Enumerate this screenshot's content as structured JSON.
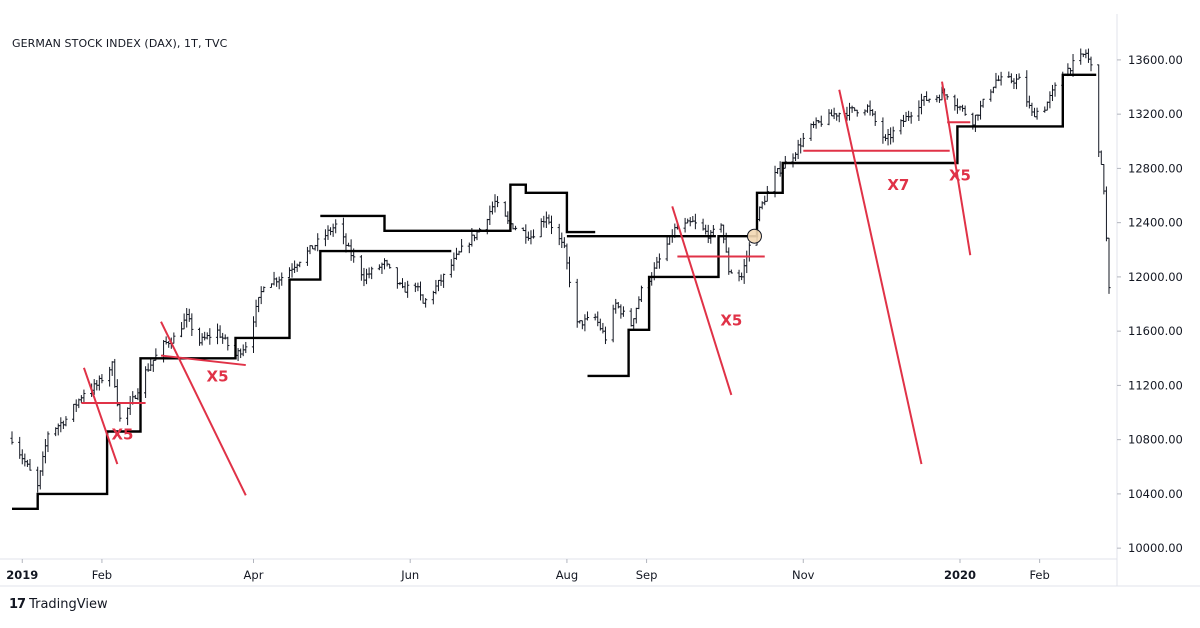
{
  "chart_data": {
    "type": "bar",
    "title": "GERMAN STOCK INDEX (DAX), 1T, TVC",
    "style": "OHLC price bars with black stepped stop line, red trendlines, multiplier annotations",
    "xlabel": "",
    "ylabel": "",
    "ylim": [
      9920,
      13850
    ],
    "y_ticks": [
      "13600.00",
      "13200.00",
      "12800.00",
      "12400.00",
      "12000.00",
      "11600.00",
      "11200.00",
      "10800.00",
      "10400.00",
      "10000.00"
    ],
    "x_ticks": [
      "2019",
      "Feb",
      "Apr",
      "Jun",
      "Aug",
      "Sep",
      "Nov",
      "2020",
      "Feb"
    ],
    "x_domain": [
      "2018-12-28",
      "2020-02-28"
    ],
    "series": [
      {
        "role": "price",
        "type": "ohlc",
        "color": "#131722",
        "close_path": [
          [
            "2018-12-28",
            10810
          ],
          [
            "2019-01-03",
            10600
          ],
          [
            "2019-01-07",
            10450
          ],
          [
            "2019-01-11",
            10850
          ],
          [
            "2019-01-18",
            10950
          ],
          [
            "2019-01-25",
            11150
          ],
          [
            "2019-01-30",
            11200
          ],
          [
            "2019-02-05",
            11350
          ],
          [
            "2019-02-08",
            10950
          ],
          [
            "2019-02-12",
            11050
          ],
          [
            "2019-02-18",
            11300
          ],
          [
            "2019-02-25",
            11500
          ],
          [
            "2019-03-01",
            11550
          ],
          [
            "2019-03-06",
            11700
          ],
          [
            "2019-03-11",
            11520
          ],
          [
            "2019-03-18",
            11600
          ],
          [
            "2019-03-25",
            11420
          ],
          [
            "2019-03-29",
            11500
          ],
          [
            "2019-04-05",
            11950
          ],
          [
            "2019-04-12",
            12000
          ],
          [
            "2019-04-23",
            12200
          ],
          [
            "2019-05-03",
            12380
          ],
          [
            "2019-05-08",
            12200
          ],
          [
            "2019-05-14",
            12000
          ],
          [
            "2019-05-22",
            12100
          ],
          [
            "2019-05-29",
            11900
          ],
          [
            "2019-06-03",
            11950
          ],
          [
            "2019-06-06",
            11800
          ],
          [
            "2019-06-14",
            12000
          ],
          [
            "2019-06-21",
            12200
          ],
          [
            "2019-06-28",
            12350
          ],
          [
            "2019-07-04",
            12550
          ],
          [
            "2019-07-09",
            12400
          ],
          [
            "2019-07-18",
            12300
          ],
          [
            "2019-07-24",
            12450
          ],
          [
            "2019-07-31",
            12200
          ],
          [
            "2019-08-05",
            11650
          ],
          [
            "2019-08-12",
            11700
          ],
          [
            "2019-08-16",
            11550
          ],
          [
            "2019-08-20",
            11800
          ],
          [
            "2019-08-26",
            11650
          ],
          [
            "2019-08-30",
            11900
          ],
          [
            "2019-09-04",
            12050
          ],
          [
            "2019-09-12",
            12350
          ],
          [
            "2019-09-19",
            12400
          ],
          [
            "2019-09-26",
            12300
          ],
          [
            "2019-09-30",
            12400
          ],
          [
            "2019-10-03",
            12050
          ],
          [
            "2019-10-08",
            12000
          ],
          [
            "2019-10-14",
            12450
          ],
          [
            "2019-10-21",
            12750
          ],
          [
            "2019-10-28",
            12900
          ],
          [
            "2019-11-04",
            13100
          ],
          [
            "2019-11-13",
            13200
          ],
          [
            "2019-11-26",
            13250
          ],
          [
            "2019-12-03",
            13000
          ],
          [
            "2019-12-10",
            13150
          ],
          [
            "2019-12-17",
            13300
          ],
          [
            "2019-12-27",
            13350
          ],
          [
            "2020-01-06",
            13150
          ],
          [
            "2020-01-15",
            13450
          ],
          [
            "2020-01-24",
            13450
          ],
          [
            "2020-01-29",
            13200
          ],
          [
            "2020-02-03",
            13250
          ],
          [
            "2020-02-10",
            13500
          ],
          [
            "2020-02-19",
            13650
          ],
          [
            "2020-02-21",
            13550
          ],
          [
            "2020-02-24",
            12950
          ],
          [
            "2020-02-26",
            12650
          ],
          [
            "2020-02-28",
            11900
          ]
        ]
      },
      {
        "role": "stepped stop line",
        "type": "step",
        "color": "#000000",
        "segments": [
          [
            [
              "2018-12-28",
              10290
            ],
            [
              "2019-01-07",
              10290
            ],
            [
              "2019-01-07",
              10400
            ],
            [
              "2019-02-03",
              10400
            ],
            [
              "2019-02-03",
              10860
            ],
            [
              "2019-02-16",
              10860
            ],
            [
              "2019-02-16",
              11400
            ],
            [
              "2019-03-25",
              11400
            ],
            [
              "2019-03-25",
              11550
            ],
            [
              "2019-04-15",
              11550
            ],
            [
              "2019-04-15",
              11980
            ],
            [
              "2019-04-27",
              11980
            ],
            [
              "2019-04-27",
              12190
            ],
            [
              "2019-06-17",
              12190
            ]
          ],
          [
            [
              "2019-04-27",
              12450
            ],
            [
              "2019-05-22",
              12450
            ],
            [
              "2019-05-22",
              12340
            ],
            [
              "2019-07-10",
              12340
            ],
            [
              "2019-07-10",
              12680
            ],
            [
              "2019-07-16",
              12680
            ],
            [
              "2019-07-16",
              12620
            ],
            [
              "2019-08-01",
              12620
            ],
            [
              "2019-08-01",
              12330
            ],
            [
              "2019-08-12",
              12330
            ]
          ],
          [
            [
              "2019-08-09",
              11270
            ],
            [
              "2019-08-25",
              11270
            ],
            [
              "2019-08-25",
              11610
            ],
            [
              "2019-09-02",
              11610
            ],
            [
              "2019-09-02",
              12000
            ],
            [
              "2019-09-29",
              12000
            ],
            [
              "2019-09-29",
              12300
            ],
            [
              "2019-10-14",
              12300
            ],
            [
              "2019-10-14",
              12620
            ],
            [
              "2019-10-24",
              12620
            ],
            [
              "2019-10-24",
              12840
            ],
            [
              "2019-12-31",
              12840
            ],
            [
              "2019-12-31",
              13110
            ],
            [
              "2020-02-10",
              13110
            ],
            [
              "2020-02-10",
              13490
            ],
            [
              "2020-02-23",
              13490
            ]
          ]
        ],
        "extra_segments": [
          [
            [
              "2019-08-01",
              12300
            ],
            [
              "2019-09-28",
              12300
            ]
          ]
        ]
      }
    ],
    "trendlines": [
      {
        "color": "#e03247",
        "from": [
          "2019-01-25",
          11330
        ],
        "to": [
          "2019-02-07",
          10620
        ]
      },
      {
        "color": "#e03247",
        "from": [
          "2019-01-24",
          11070
        ],
        "to": [
          "2019-02-18",
          11070
        ]
      },
      {
        "color": "#e03247",
        "from": [
          "2019-02-24",
          11670
        ],
        "to": [
          "2019-03-29",
          10390
        ]
      },
      {
        "color": "#e03247",
        "from": [
          "2019-02-24",
          11420
        ],
        "to": [
          "2019-03-29",
          11350
        ]
      },
      {
        "color": "#e03247",
        "from": [
          "2019-09-11",
          12520
        ],
        "to": [
          "2019-10-04",
          11130
        ]
      },
      {
        "color": "#e03247",
        "from": [
          "2019-09-13",
          12150
        ],
        "to": [
          "2019-10-17",
          12150
        ]
      },
      {
        "color": "#e03247",
        "from": [
          "2019-11-15",
          13380
        ],
        "to": [
          "2019-12-17",
          10620
        ]
      },
      {
        "color": "#e03247",
        "from": [
          "2019-11-01",
          12930
        ],
        "to": [
          "2019-12-28",
          12930
        ]
      },
      {
        "color": "#e03247",
        "from": [
          "2019-12-25",
          13440
        ],
        "to": [
          "2020-01-05",
          12160
        ]
      },
      {
        "color": "#e03247",
        "from": [
          "2019-12-27",
          13140
        ],
        "to": [
          "2020-01-05",
          13140
        ]
      }
    ],
    "annotations": [
      {
        "text": "X5",
        "x": "2019-02-09",
        "y": 10800,
        "color": "#e03247"
      },
      {
        "text": "X5",
        "x": "2019-03-18",
        "y": 11230,
        "color": "#e03247"
      },
      {
        "text": "X5",
        "x": "2019-10-04",
        "y": 11640,
        "color": "#e03247"
      },
      {
        "text": "X7",
        "x": "2019-12-08",
        "y": 12640,
        "color": "#e03247"
      },
      {
        "text": "X5",
        "x": "2020-01-01",
        "y": 12710,
        "color": "#e03247"
      }
    ],
    "marker": {
      "x": "2019-10-13",
      "y": 12300,
      "color": "#f3d8b4"
    },
    "grid": false,
    "legend": "none"
  },
  "branding": {
    "logo": "17",
    "name": "TradingView"
  }
}
